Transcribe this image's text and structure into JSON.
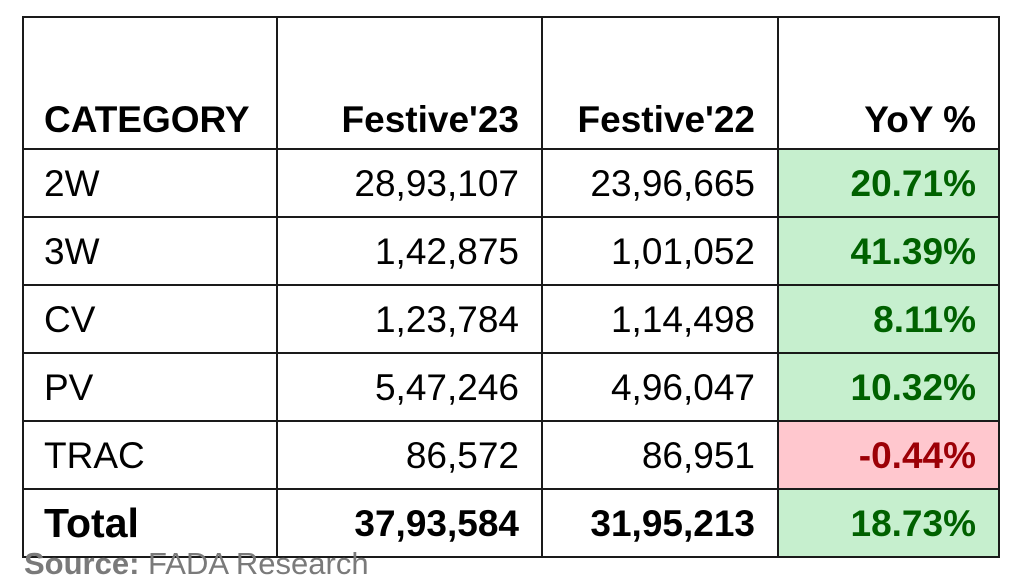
{
  "colors": {
    "positive_bg": "#c6efce",
    "positive_text": "#006100",
    "negative_bg": "#ffc7ce",
    "negative_text": "#9c0006",
    "source_text": "#7a7a7a"
  },
  "table": {
    "headers": {
      "category": "CATEGORY",
      "festive23": "Festive'23",
      "festive22": "Festive'22",
      "yoy": "YoY %"
    },
    "rows": [
      {
        "category": "2W",
        "festive23": "28,93,107",
        "festive22": "23,96,665",
        "yoy": "20.71%",
        "yoy_trend": "positive"
      },
      {
        "category": "3W",
        "festive23": "1,42,875",
        "festive22": "1,01,052",
        "yoy": "41.39%",
        "yoy_trend": "positive"
      },
      {
        "category": "CV",
        "festive23": "1,23,784",
        "festive22": "1,14,498",
        "yoy": "8.11%",
        "yoy_trend": "positive"
      },
      {
        "category": "PV",
        "festive23": "5,47,246",
        "festive22": "4,96,047",
        "yoy": "10.32%",
        "yoy_trend": "positive"
      },
      {
        "category": "TRAC",
        "festive23": "86,572",
        "festive22": "86,951",
        "yoy": "-0.44%",
        "yoy_trend": "negative"
      }
    ],
    "total": {
      "category": "Total",
      "festive23": "37,93,584",
      "festive22": "31,95,213",
      "yoy": "18.73%",
      "yoy_trend": "positive"
    }
  },
  "source": {
    "label": "Source:",
    "text": "FADA Research"
  }
}
